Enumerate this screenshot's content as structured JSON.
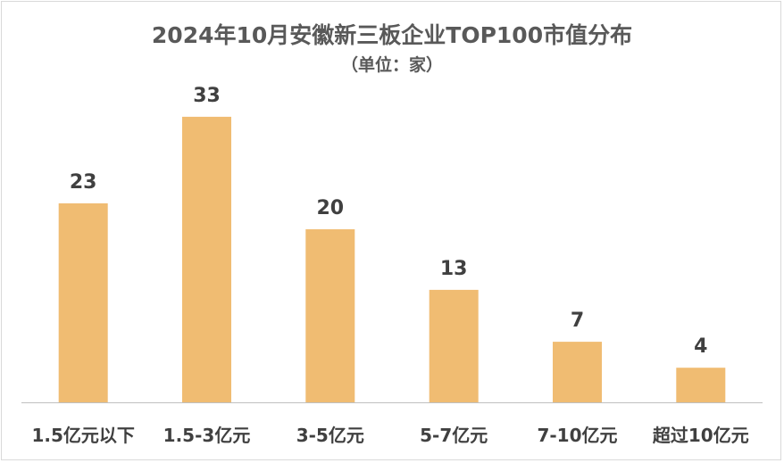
{
  "chart_data": {
    "type": "bar",
    "title": "2024年10月安徽新三板企业TOP100市值分布",
    "subtitle": "（单位：家）",
    "categories": [
      "1.5亿元以下",
      "1.5-3亿元",
      "3-5亿元",
      "5-7亿元",
      "7-10亿元",
      "超过10亿元"
    ],
    "values": [
      23,
      33,
      20,
      13,
      7,
      4
    ],
    "xlabel": "",
    "ylabel": "",
    "ylim": [
      0,
      35
    ],
    "grid": false,
    "legend": "none",
    "bar_color": "#F0BC72",
    "axis_color": "#BFBFBF",
    "text_color": "#404040",
    "title_color": "#595959"
  }
}
